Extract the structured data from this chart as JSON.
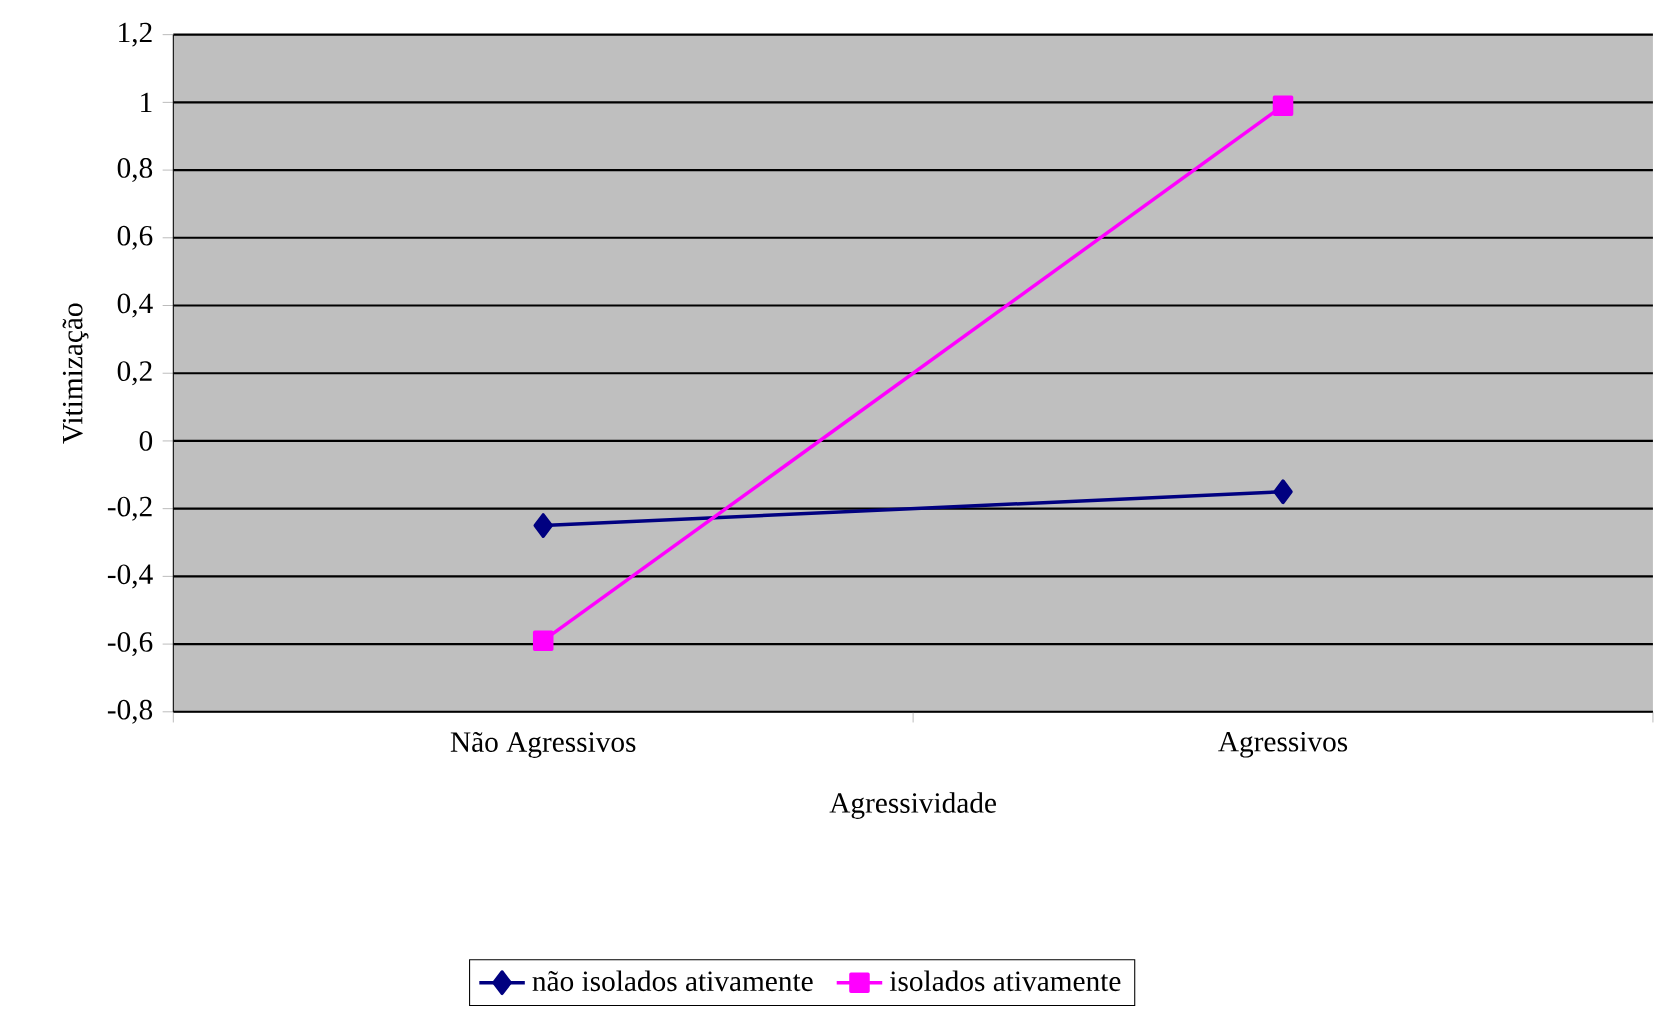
{
  "chart_data": {
    "type": "line",
    "xlabel": "Agressividade",
    "ylabel": "Vitimização",
    "categories": [
      "Não Agressivos",
      "Agressivos"
    ],
    "series": [
      {
        "name": "não isolados ativamente",
        "color": "#000080",
        "marker": "diamond",
        "values": [
          -0.25,
          -0.15
        ]
      },
      {
        "name": "isolados ativamente",
        "color": "#ff00ff",
        "marker": "square",
        "values": [
          -0.59,
          0.99
        ]
      }
    ],
    "ylim": [
      -0.8,
      1.2
    ],
    "yticks": [
      {
        "value": -0.8,
        "label": "-0,8"
      },
      {
        "value": -0.6,
        "label": "-0,6"
      },
      {
        "value": -0.4,
        "label": "-0,4"
      },
      {
        "value": -0.2,
        "label": "-0,2"
      },
      0,
      {
        "value": 0.2,
        "label": "0,2"
      },
      {
        "value": 0.4,
        "label": "0,4"
      },
      {
        "value": 0.6,
        "label": "0,6"
      },
      {
        "value": 0.8,
        "label": "0,8"
      },
      1,
      {
        "value": 1.2,
        "label": "1,2"
      }
    ],
    "grid": "y",
    "legend": "bottom",
    "line_style": "solid"
  }
}
